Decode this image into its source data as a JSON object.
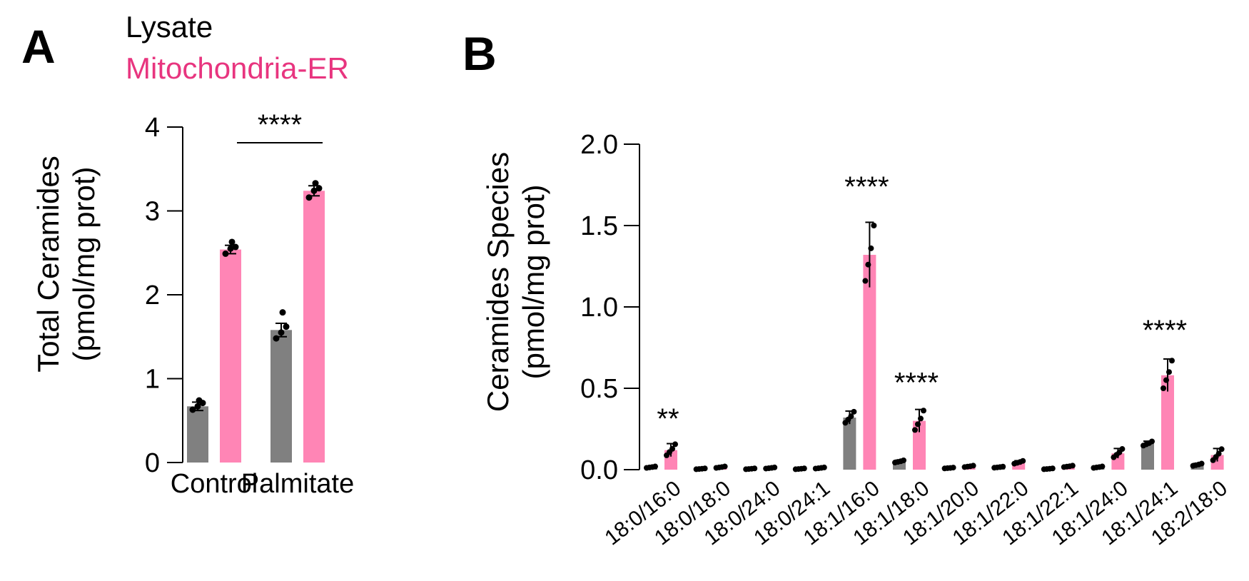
{
  "panels": {
    "a_letter": "A",
    "b_letter": "B"
  },
  "legend": {
    "items": [
      {
        "label": "Lysate",
        "color": "#000000"
      },
      {
        "label": "Mitochondria-ER",
        "color": "#e8357f"
      }
    ]
  },
  "colors": {
    "lysate_bar": "#808080",
    "mito_bar": "#ff85b5",
    "mito_text": "#e8357f",
    "point": "#000000"
  },
  "chart_data": [
    {
      "panel": "A",
      "type": "bar",
      "title": "",
      "ylabel": [
        "Total Ceramides",
        "(pmol/mg prot)"
      ],
      "ylim": [
        0,
        4
      ],
      "yticks": [
        "0",
        "1",
        "2",
        "3",
        "4"
      ],
      "categories": [
        "Control",
        "Palmitate"
      ],
      "series": [
        {
          "name": "Lysate",
          "values": [
            0.67,
            1.58
          ],
          "errors": [
            0.05,
            0.08
          ],
          "points": [
            [
              0.63,
              0.67,
              0.71,
              0.74
            ],
            [
              1.48,
              1.55,
              1.62,
              1.79
            ]
          ]
        },
        {
          "name": "Mitochondria-ER",
          "values": [
            2.54,
            3.24
          ],
          "errors": [
            0.05,
            0.06
          ],
          "points": [
            [
              2.49,
              2.55,
              2.57,
              2.63
            ],
            [
              3.16,
              3.24,
              3.27,
              3.33
            ]
          ]
        }
      ],
      "annotations": [
        {
          "text": "****",
          "bracket": [
            0,
            1
          ]
        }
      ]
    },
    {
      "panel": "B",
      "type": "bar",
      "title": "",
      "ylabel": [
        "Ceramides Species",
        "(pmol/mg prot)"
      ],
      "ylim": [
        0,
        2.0
      ],
      "yticks": [
        "0.0",
        "0.5",
        "1.0",
        "1.5",
        "2.0"
      ],
      "categories": [
        "18:0/16:0",
        "18:0/18:0",
        "18:0/24:0",
        "18:0/24:1",
        "18:1/16:0",
        "18:1/18:0",
        "18:1/20:0",
        "18:1/22:0",
        "18:1/22:1",
        "18:1/24:0",
        "18:1/24:1",
        "18:2/18:0"
      ],
      "series": [
        {
          "name": "Lysate",
          "values": [
            0.015,
            0.005,
            0.005,
            0.005,
            0.32,
            0.05,
            0.01,
            0.015,
            0.005,
            0.015,
            0.16,
            0.03
          ],
          "errors": [
            0.005,
            0.003,
            0.003,
            0.003,
            0.04,
            0.008,
            0.003,
            0.004,
            0.003,
            0.005,
            0.015,
            0.008
          ]
        },
        {
          "name": "Mitochondria-ER",
          "values": [
            0.12,
            0.015,
            0.01,
            0.01,
            1.32,
            0.3,
            0.02,
            0.045,
            0.02,
            0.1,
            0.58,
            0.09
          ],
          "errors": [
            0.04,
            0.005,
            0.004,
            0.004,
            0.2,
            0.07,
            0.005,
            0.01,
            0.005,
            0.03,
            0.1,
            0.04
          ]
        }
      ],
      "annotations": [
        {
          "text": "**",
          "category": 0
        },
        {
          "text": "****",
          "category": 4
        },
        {
          "text": "****",
          "category": 5
        },
        {
          "text": "****",
          "category": 10
        }
      ]
    }
  ]
}
